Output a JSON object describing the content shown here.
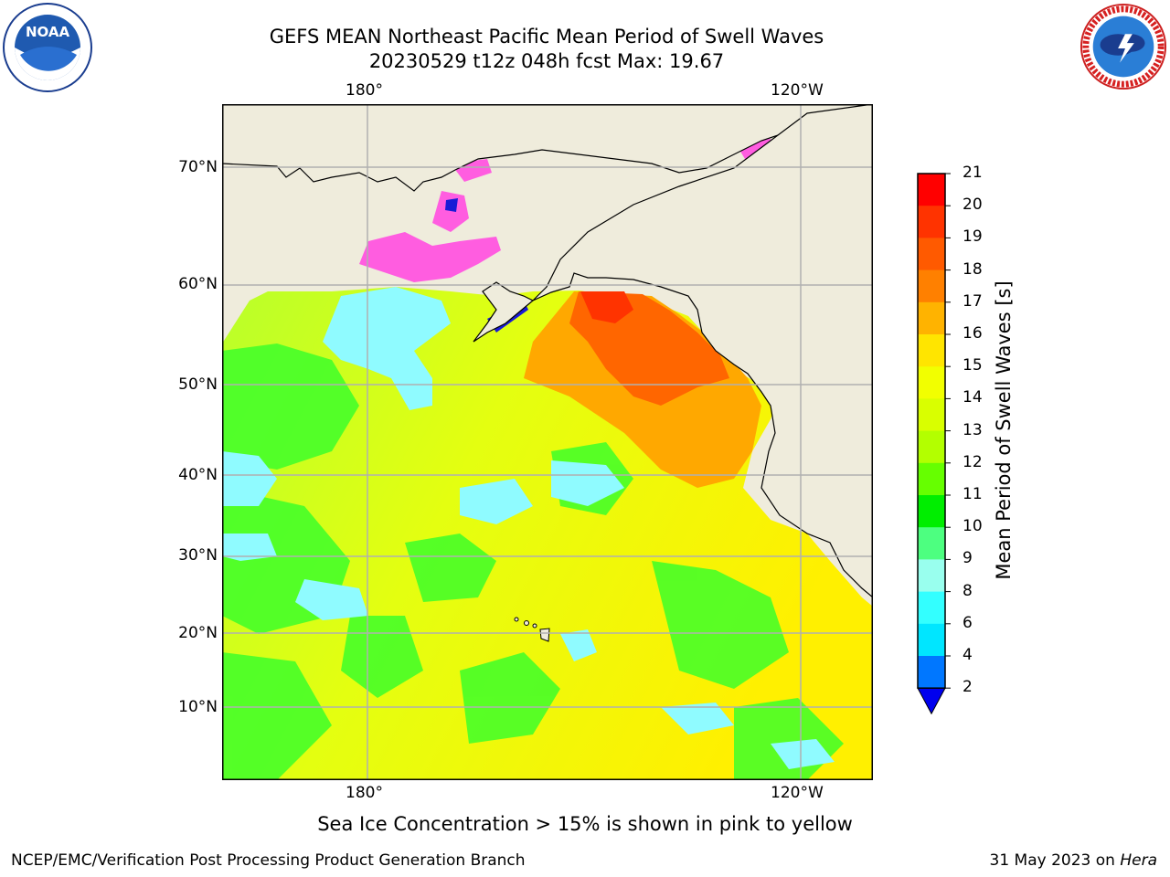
{
  "header": {
    "title_line1": "GEFS MEAN Northeast Pacific Mean Period of Swell Waves",
    "title_line2": "20230529 t12z 048h fcst   Max: 19.67"
  },
  "logos": {
    "left": {
      "name": "NOAA",
      "ring_text": "NATIONAL OCEANIC AND ATMOSPHERIC ADMINISTRATION",
      "bottom_text": "U.S. DEPARTMENT OF COMMERCE"
    },
    "right": {
      "ring_text": "NATIONAL WEATHER SERVICE"
    }
  },
  "map": {
    "lon_ticks_top": [
      "180°",
      "120°W"
    ],
    "lon_ticks_bottom": [
      "180°",
      "120°W"
    ],
    "lat_ticks": [
      "70°N",
      "60°N",
      "50°N",
      "40°N",
      "30°N",
      "20°N",
      "10°N"
    ],
    "colors": {
      "land": "#efecdc",
      "grid": "#b0b0b0",
      "coast": "#000000"
    }
  },
  "colorbar": {
    "title": "Mean Period of Swell Waves [s]",
    "levels": [
      "21",
      "20",
      "19",
      "18",
      "17",
      "16",
      "15",
      "14",
      "13",
      "12",
      "11",
      "10",
      "9",
      "8",
      "6",
      "4",
      "2"
    ],
    "colors": [
      "#ff0000",
      "#ff3300",
      "#ff5a00",
      "#ff8000",
      "#ffb300",
      "#ffe500",
      "#f2ff00",
      "#d9ff00",
      "#b3ff00",
      "#66ff00",
      "#00ee00",
      "#4dff80",
      "#99ffee",
      "#33ffff",
      "#00e6ff",
      "#0077ff"
    ],
    "extend_color": "#0000ee"
  },
  "note": "Sea Ice Concentration > 15% is shown in pink to yellow",
  "footer": {
    "left": "NCEP/EMC/Verification Post Processing Product Generation Branch",
    "right_date": "31 May 2023 on ",
    "right_host": "Hera"
  }
}
